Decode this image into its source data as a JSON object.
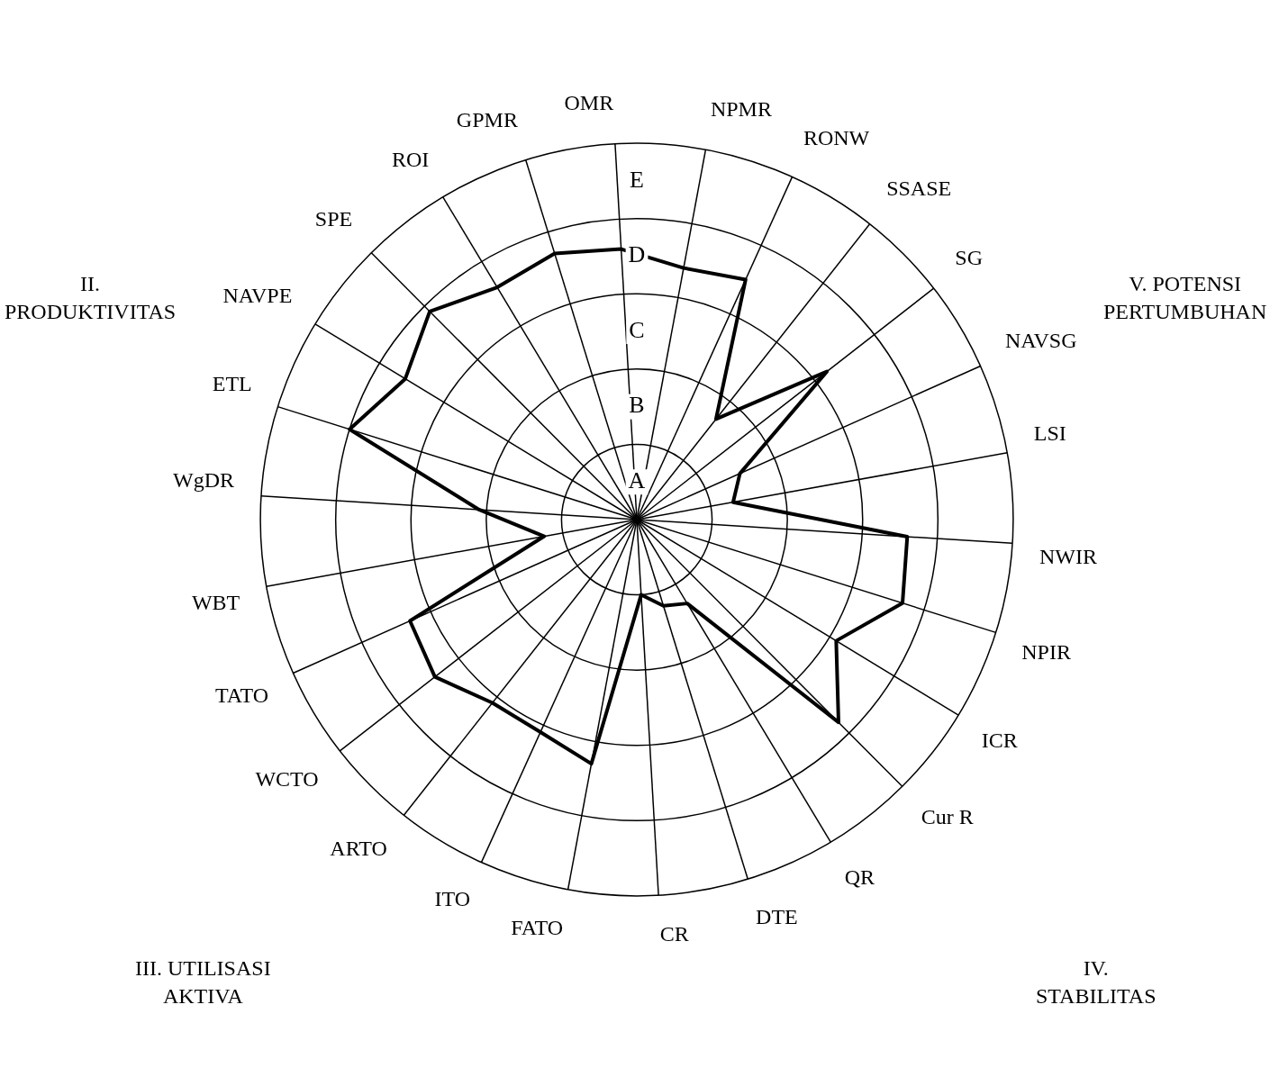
{
  "chart_data": {
    "type": "radar",
    "categories": [
      "ROI",
      "GPMR",
      "OMR",
      "NPMR",
      "RONW",
      "SSASE",
      "SG",
      "NAVSG",
      "LSI",
      "NWIR",
      "NPIR",
      "ICR",
      "Cur R",
      "QR",
      "DTE",
      "CR",
      "FATO",
      "ITO",
      "ARTO",
      "WCTO",
      "TATO",
      "WBT",
      "WgDR",
      "ETL",
      "NAVPE",
      "SPE"
    ],
    "series": [
      {
        "color": "#000000",
        "values": [
          3.6,
          3.7,
          3.6,
          3.4,
          3.5,
          1.7,
          3.2,
          1.5,
          1.3,
          3.6,
          3.7,
          3.1,
          3.8,
          1.3,
          1.2,
          1.0,
          3.3,
          3.1,
          3.1,
          3.4,
          3.3,
          1.25,
          2.1,
          4.0,
          3.6,
          3.9
        ]
      }
    ],
    "ylim": [
      0,
      5
    ],
    "yticks": [
      {
        "value": 0.5,
        "label": "A"
      },
      {
        "value": 1.5,
        "label": "B"
      },
      {
        "value": 2.5,
        "label": "C"
      },
      {
        "value": 3.5,
        "label": "D"
      },
      {
        "value": 4.5,
        "label": "E"
      }
    ],
    "annotations": [
      "II.\nPRODUKTIVITAS",
      "V. POTENSI\nPERTUMBUHAN",
      "III. UTILISASI\nAKTIVA",
      "IV.\nSTABILITAS"
    ],
    "grid": true,
    "legend": false,
    "marker": "none",
    "line_style": "solid"
  }
}
